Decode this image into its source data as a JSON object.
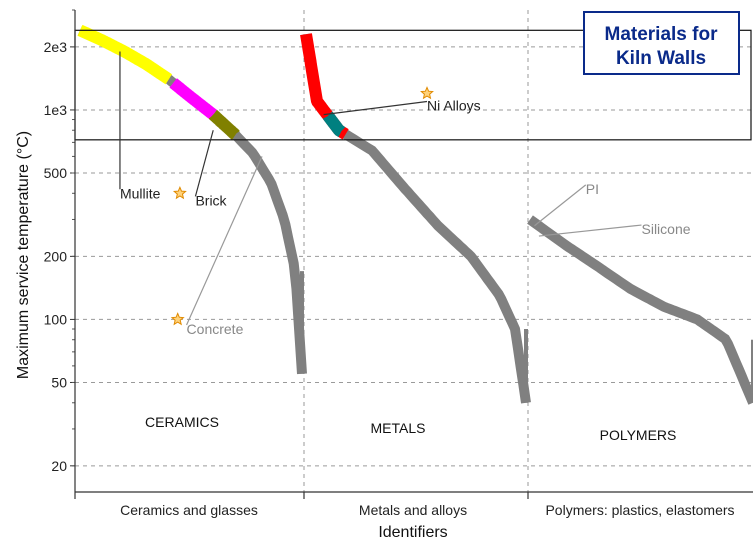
{
  "chart_data": {
    "type": "scatter",
    "title": "Materials for Kiln Walls",
    "xlabel": "Identifiers",
    "ylabel": "Maximum service temperature (°C)",
    "yscale": "log",
    "ylim": [
      15,
      3000
    ],
    "y_ticks": [
      {
        "value": 2000,
        "label": "2e3"
      },
      {
        "value": 1000,
        "label": "1e3"
      },
      {
        "value": 500,
        "label": "500"
      },
      {
        "value": 200,
        "label": "200"
      },
      {
        "value": 100,
        "label": "100"
      },
      {
        "value": 50,
        "label": "50"
      },
      {
        "value": 20,
        "label": "20"
      }
    ],
    "categories": [
      "Ceramics and glasses",
      "Metals and alloys",
      "Polymers: plastics, elastomers"
    ],
    "class_labels": [
      "CERAMICS",
      "METALS",
      "POLYMERS"
    ],
    "selection_box": {
      "y_min": 720,
      "y_max": 2400
    },
    "grid": true,
    "series": [
      {
        "category_index": 0,
        "color": "#808080",
        "description": "ceramics and glasses max service temperature trend",
        "points": [
          [
            0.0,
            2400
          ],
          [
            0.1,
            2150
          ],
          [
            0.2,
            1900
          ],
          [
            0.3,
            1650
          ],
          [
            0.4,
            1400
          ],
          [
            0.5,
            1150
          ],
          [
            0.6,
            950
          ],
          [
            0.7,
            760
          ],
          [
            0.78,
            620
          ],
          [
            0.86,
            450
          ],
          [
            0.92,
            300
          ],
          [
            0.97,
            170
          ],
          [
            1.0,
            55
          ]
        ]
      },
      {
        "category_index": 1,
        "color": "#808080",
        "description": "metals and alloys max service temperature trend",
        "points": [
          [
            0.0,
            2300
          ],
          [
            0.05,
            1100
          ],
          [
            0.15,
            800
          ],
          [
            0.3,
            640
          ],
          [
            0.45,
            420
          ],
          [
            0.6,
            280
          ],
          [
            0.75,
            200
          ],
          [
            0.88,
            130
          ],
          [
            0.95,
            90
          ],
          [
            1.0,
            40
          ]
        ]
      },
      {
        "category_index": 2,
        "color": "#808080",
        "description": "polymers and elastomers max service temperature trend",
        "points": [
          [
            0.0,
            300
          ],
          [
            0.15,
            230
          ],
          [
            0.3,
            180
          ],
          [
            0.45,
            140
          ],
          [
            0.6,
            115
          ],
          [
            0.75,
            100
          ],
          [
            0.88,
            80
          ],
          [
            1.0,
            40
          ]
        ]
      }
    ],
    "highlighted": [
      {
        "category_index": 0,
        "color": "#ffff00",
        "from": 0.0,
        "to": 0.4
      },
      {
        "category_index": 0,
        "color": "#ff00ff",
        "from": 0.42,
        "to": 0.6
      },
      {
        "category_index": 0,
        "color": "#808000",
        "from": 0.6,
        "to": 0.7
      },
      {
        "category_index": 1,
        "color": "#ff0000",
        "from": 0.0,
        "to": 0.18
      },
      {
        "category_index": 1,
        "color": "#008080",
        "from": 0.1,
        "to": 0.16
      }
    ],
    "annotations": [
      {
        "text": "Mullite",
        "category_index": 0,
        "pos": 0.18,
        "value": 400,
        "target_pos": 0.18,
        "target_value": 1900,
        "style": "dark"
      },
      {
        "text": "Brick",
        "category_index": 0,
        "pos": 0.52,
        "value": 370,
        "target_pos": 0.6,
        "target_value": 800,
        "style": "dark"
      },
      {
        "text": "Concrete",
        "category_index": 0,
        "pos": 0.48,
        "value": 90,
        "target_pos": 0.82,
        "target_value": 600,
        "style": "grey"
      },
      {
        "text": "Ni Alloys",
        "category_index": 1,
        "pos": 0.55,
        "value": 1050,
        "target_pos": 0.08,
        "target_value": 950,
        "style": "dark"
      },
      {
        "text": "PI",
        "category_index": 2,
        "pos": 0.25,
        "value": 420,
        "target_pos": 0.02,
        "target_value": 280,
        "style": "grey"
      },
      {
        "text": "Silicone",
        "category_index": 2,
        "pos": 0.5,
        "value": 270,
        "target_pos": 0.04,
        "target_value": 250,
        "style": "grey"
      }
    ],
    "star_markers": [
      {
        "category_index": 0,
        "pos": 0.45,
        "value": 400
      },
      {
        "category_index": 0,
        "pos": 0.44,
        "value": 100
      },
      {
        "category_index": 1,
        "pos": 0.55,
        "value": 1200
      }
    ]
  }
}
